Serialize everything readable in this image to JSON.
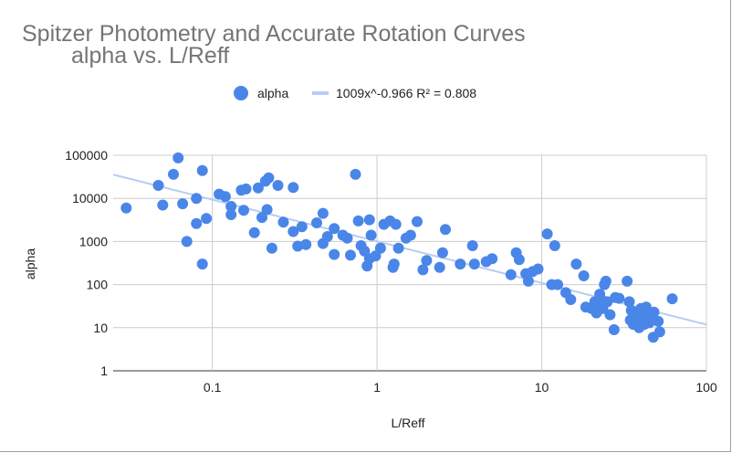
{
  "chart_data": {
    "type": "scatter",
    "title": "Spitzer Photometry and Accurate Rotation Curves",
    "subtitle": "alpha vs. L/Reff",
    "xlabel": "L/Reff",
    "ylabel": "alpha",
    "x_scale": "log",
    "y_scale": "log",
    "xlim": [
      0.025,
      100
    ],
    "ylim": [
      1,
      100000
    ],
    "x_ticks": [
      0.1,
      1,
      10,
      100
    ],
    "x_tick_labels": [
      "0.1",
      "1",
      "10",
      "100"
    ],
    "y_ticks": [
      1,
      10,
      100,
      1000,
      10000,
      100000
    ],
    "y_tick_labels": [
      "1",
      "10",
      "100",
      "1000",
      "10000",
      "100000"
    ],
    "grid": true,
    "legend_position": "top",
    "series": [
      {
        "name": "alpha",
        "color": "#4a86e8",
        "points": [
          [
            0.03,
            6000
          ],
          [
            0.047,
            20000
          ],
          [
            0.05,
            7000
          ],
          [
            0.058,
            36000
          ],
          [
            0.062,
            87000
          ],
          [
            0.066,
            7500
          ],
          [
            0.07,
            1000
          ],
          [
            0.08,
            2600
          ],
          [
            0.08,
            10000
          ],
          [
            0.087,
            44000
          ],
          [
            0.087,
            300
          ],
          [
            0.092,
            3400
          ],
          [
            0.11,
            12500
          ],
          [
            0.12,
            11000
          ],
          [
            0.13,
            6500
          ],
          [
            0.13,
            4200
          ],
          [
            0.15,
            15500
          ],
          [
            0.16,
            16500
          ],
          [
            0.155,
            5300
          ],
          [
            0.18,
            1600
          ],
          [
            0.19,
            17500
          ],
          [
            0.2,
            3600
          ],
          [
            0.21,
            25000
          ],
          [
            0.22,
            30000
          ],
          [
            0.215,
            5500
          ],
          [
            0.23,
            700
          ],
          [
            0.25,
            20000
          ],
          [
            0.27,
            2800
          ],
          [
            0.31,
            18000
          ],
          [
            0.31,
            1700
          ],
          [
            0.33,
            780
          ],
          [
            0.35,
            2200
          ],
          [
            0.37,
            850
          ],
          [
            0.43,
            2700
          ],
          [
            0.47,
            4500
          ],
          [
            0.47,
            900
          ],
          [
            0.5,
            1300
          ],
          [
            0.55,
            2000
          ],
          [
            0.55,
            500
          ],
          [
            0.62,
            1400
          ],
          [
            0.66,
            1200
          ],
          [
            0.69,
            480
          ],
          [
            0.74,
            36000
          ],
          [
            0.77,
            3000
          ],
          [
            0.8,
            800
          ],
          [
            0.84,
            600
          ],
          [
            0.87,
            270
          ],
          [
            0.9,
            3200
          ],
          [
            0.9,
            400
          ],
          [
            0.92,
            1400
          ],
          [
            0.98,
            460
          ],
          [
            1.05,
            700
          ],
          [
            1.1,
            2500
          ],
          [
            1.2,
            3000
          ],
          [
            1.25,
            250
          ],
          [
            1.27,
            300
          ],
          [
            1.3,
            2500
          ],
          [
            1.35,
            700
          ],
          [
            1.5,
            1200
          ],
          [
            1.6,
            1400
          ],
          [
            1.75,
            2900
          ],
          [
            1.9,
            220
          ],
          [
            2.0,
            360
          ],
          [
            2.4,
            250
          ],
          [
            2.5,
            550
          ],
          [
            2.6,
            1900
          ],
          [
            3.2,
            300
          ],
          [
            3.8,
            800
          ],
          [
            3.9,
            300
          ],
          [
            4.6,
            340
          ],
          [
            5.0,
            400
          ],
          [
            6.5,
            170
          ],
          [
            7.0,
            550
          ],
          [
            7.3,
            380
          ],
          [
            8.0,
            180
          ],
          [
            8.3,
            120
          ],
          [
            8.8,
            200
          ],
          [
            9.5,
            230
          ],
          [
            10.8,
            1500
          ],
          [
            11.5,
            100
          ],
          [
            12.0,
            800
          ],
          [
            12.5,
            100
          ],
          [
            14.0,
            65
          ],
          [
            15.0,
            45
          ],
          [
            16.2,
            300
          ],
          [
            18.0,
            160
          ],
          [
            18.5,
            30
          ],
          [
            20.0,
            28
          ],
          [
            21.0,
            40
          ],
          [
            21.5,
            22
          ],
          [
            22.0,
            35
          ],
          [
            22.5,
            60
          ],
          [
            23.0,
            45
          ],
          [
            23.5,
            28
          ],
          [
            24.0,
            100
          ],
          [
            24.5,
            120
          ],
          [
            25.0,
            40
          ],
          [
            26.0,
            20
          ],
          [
            27.5,
            9
          ],
          [
            28.0,
            50
          ],
          [
            29.5,
            48
          ],
          [
            33.0,
            120
          ],
          [
            34.0,
            40
          ],
          [
            34.5,
            15
          ],
          [
            35.0,
            25
          ],
          [
            36.0,
            12
          ],
          [
            37.0,
            16
          ],
          [
            38.0,
            22
          ],
          [
            39.0,
            10
          ],
          [
            40.0,
            28
          ],
          [
            41.0,
            16
          ],
          [
            42.0,
            12
          ],
          [
            43.0,
            30
          ],
          [
            44.0,
            20
          ],
          [
            45.0,
            13
          ],
          [
            46.0,
            18
          ],
          [
            47.5,
            6
          ],
          [
            48.0,
            23
          ],
          [
            51.0,
            14
          ],
          [
            52.0,
            8
          ],
          [
            62.0,
            47
          ]
        ]
      },
      {
        "name": "1009x^-0.966 R² = 0.808",
        "color": "#b7cdf3",
        "trendline": {
          "model": "power",
          "a": 1009,
          "b": -0.966,
          "x_range": [
            0.025,
            100
          ]
        }
      }
    ]
  }
}
